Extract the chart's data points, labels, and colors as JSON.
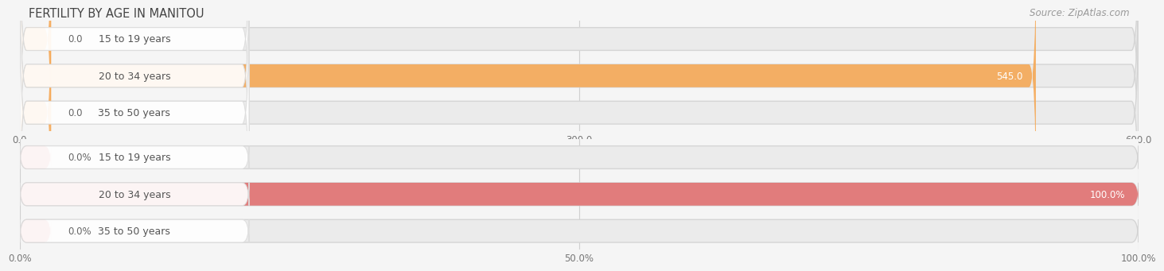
{
  "title": "FERTILITY BY AGE IN MANITOU",
  "source": "Source: ZipAtlas.com",
  "top_chart": {
    "categories": [
      "15 to 19 years",
      "20 to 34 years",
      "35 to 50 years"
    ],
    "values": [
      0.0,
      545.0,
      0.0
    ],
    "xlim": [
      0,
      600
    ],
    "xticks": [
      0.0,
      300.0,
      600.0
    ],
    "bar_color": "#F5A855",
    "bar_bg_color": "#EBEBEB",
    "label_bg_color": "#F5F5F5",
    "value_labels": [
      "0.0",
      "545.0",
      "0.0"
    ]
  },
  "bottom_chart": {
    "categories": [
      "15 to 19 years",
      "20 to 34 years",
      "35 to 50 years"
    ],
    "values": [
      0.0,
      100.0,
      0.0
    ],
    "xlim": [
      0,
      100
    ],
    "xticks": [
      0.0,
      50.0,
      100.0
    ],
    "bar_color": "#E07070",
    "bar_bg_color": "#EBEBEB",
    "label_bg_color": "#F5F5F5",
    "value_labels": [
      "0.0%",
      "100.0%",
      "0.0%"
    ]
  },
  "background_color": "#F5F5F5",
  "label_color": "#555555",
  "title_color": "#444444",
  "source_color": "#999999",
  "title_fontsize": 10.5,
  "label_fontsize": 9,
  "value_fontsize": 8.5,
  "source_fontsize": 8.5,
  "tick_fontsize": 8.5
}
